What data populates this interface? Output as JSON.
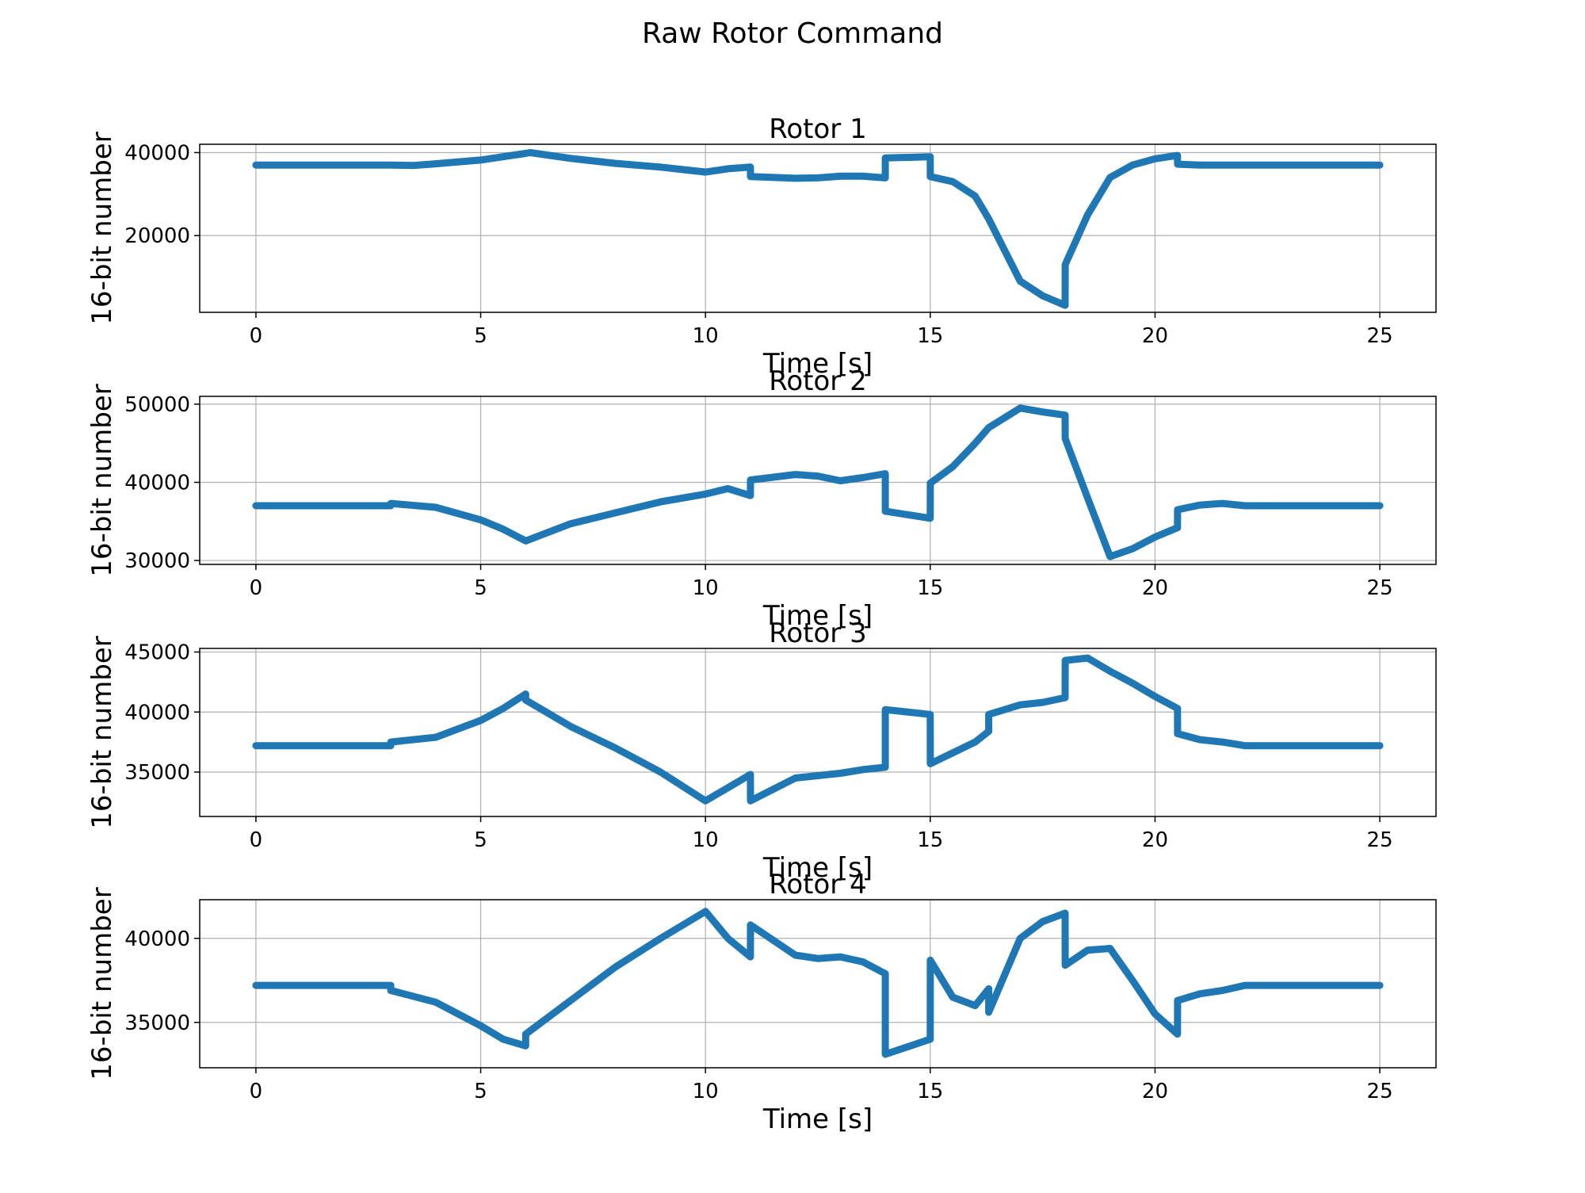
{
  "figure": {
    "title": "Raw Rotor Command"
  },
  "colors": {
    "series": "#1f77b4",
    "grid": "#b0b0b0",
    "axes": "#000000"
  },
  "chart_data": [
    {
      "type": "line",
      "title": "Rotor 1",
      "xlabel": "Time [s]",
      "ylabel": "16-bit number",
      "xlim": [
        -1.25,
        26.25
      ],
      "ylim": [
        1500,
        42000
      ],
      "xticks": [
        0,
        5,
        10,
        15,
        20,
        25
      ],
      "yticks": [
        20000,
        40000
      ],
      "grid": true,
      "series": [
        {
          "x": [
            0,
            1,
            2,
            3,
            3.5,
            4,
            5,
            5.5,
            6,
            6.1,
            7,
            8,
            9,
            10,
            10.5,
            11,
            11.001,
            12,
            12.5,
            13,
            13.5,
            14,
            14.001,
            15,
            15.001,
            15.5,
            16,
            16.3,
            17,
            17.5,
            18,
            18.001,
            18.5,
            19,
            19.5,
            20,
            20.5,
            20.501,
            21,
            21.5,
            22,
            23,
            24,
            25
          ],
          "y": [
            37000,
            37000,
            37000,
            37000,
            36900,
            37300,
            38200,
            39000,
            39800,
            40000,
            38600,
            37400,
            36500,
            35300,
            36100,
            36500,
            34200,
            33800,
            33900,
            34300,
            34300,
            33900,
            38700,
            39000,
            34200,
            33000,
            29500,
            24000,
            9000,
            5500,
            3200,
            13000,
            25000,
            34000,
            37000,
            38500,
            39300,
            37200,
            37000,
            37000,
            37000,
            37000,
            37000,
            37000
          ]
        }
      ]
    },
    {
      "type": "line",
      "title": "Rotor 2",
      "xlabel": "Time [s]",
      "ylabel": "16-bit number",
      "xlim": [
        -1.25,
        26.25
      ],
      "ylim": [
        29500,
        51000
      ],
      "xticks": [
        0,
        5,
        10,
        15,
        20,
        25
      ],
      "yticks": [
        30000,
        40000,
        50000
      ],
      "grid": true,
      "series": [
        {
          "x": [
            0,
            1,
            2,
            3,
            3.001,
            4,
            5,
            5.5,
            6,
            7,
            8,
            9,
            10,
            10.5,
            11,
            11.001,
            12,
            12.5,
            13,
            13.5,
            14,
            14.001,
            15,
            15.001,
            15.5,
            16,
            16.3,
            17,
            17.5,
            18,
            18.001,
            18.5,
            19,
            19.5,
            20,
            20.5,
            20.501,
            21,
            21.5,
            22,
            23,
            24,
            25
          ],
          "y": [
            37000,
            37000,
            37000,
            37000,
            37300,
            36800,
            35200,
            34000,
            32500,
            34700,
            36100,
            37500,
            38500,
            39200,
            38300,
            40300,
            41000,
            40800,
            40200,
            40600,
            41100,
            36300,
            35400,
            39900,
            42000,
            45000,
            47000,
            49500,
            49000,
            48600,
            45600,
            38000,
            30500,
            31500,
            33000,
            34200,
            36500,
            37100,
            37300,
            37000,
            37000,
            37000,
            37000
          ]
        }
      ]
    },
    {
      "type": "line",
      "title": "Rotor 3",
      "xlabel": "Time [s]",
      "ylabel": "16-bit number",
      "xlim": [
        -1.25,
        26.25
      ],
      "ylim": [
        31300,
        45300
      ],
      "xticks": [
        0,
        5,
        10,
        15,
        20,
        25
      ],
      "yticks": [
        35000,
        40000,
        45000
      ],
      "grid": true,
      "series": [
        {
          "x": [
            0,
            1,
            2,
            3,
            3.001,
            4,
            5,
            5.5,
            6,
            6.001,
            7,
            8,
            9,
            10,
            10.5,
            11,
            11.001,
            12,
            12.5,
            13,
            13.5,
            14,
            14.001,
            15,
            15.001,
            16,
            16.3,
            16.301,
            17,
            17.5,
            18,
            18.001,
            18.5,
            19,
            19.5,
            20,
            20.5,
            20.501,
            21,
            21.5,
            22,
            23,
            24,
            25
          ],
          "y": [
            37200,
            37200,
            37200,
            37200,
            37500,
            37900,
            39300,
            40300,
            41500,
            41000,
            38800,
            37000,
            35000,
            32600,
            33700,
            34800,
            32600,
            34500,
            34700,
            34900,
            35200,
            35400,
            40200,
            39800,
            35700,
            37500,
            38400,
            39800,
            40600,
            40800,
            41200,
            44300,
            44500,
            43400,
            42400,
            41300,
            40300,
            38200,
            37700,
            37500,
            37200,
            37200,
            37200,
            37200
          ]
        }
      ]
    },
    {
      "type": "line",
      "title": "Rotor 4",
      "xlabel": "Time [s]",
      "ylabel": "16-bit number",
      "xlim": [
        -1.25,
        26.25
      ],
      "ylim": [
        32300,
        42300
      ],
      "xticks": [
        0,
        5,
        10,
        15,
        20,
        25
      ],
      "yticks": [
        35000,
        40000
      ],
      "grid": true,
      "series": [
        {
          "x": [
            0,
            1,
            2,
            3,
            3.001,
            4,
            5,
            5.5,
            6,
            6.001,
            7,
            8,
            9,
            10,
            10.5,
            11,
            11.001,
            12,
            12.5,
            13,
            13.5,
            14,
            14.001,
            15,
            15.001,
            15.5,
            16,
            16.3,
            16.301,
            17,
            17.5,
            18,
            18.001,
            18.5,
            19,
            19.5,
            20,
            20.5,
            20.501,
            21,
            21.5,
            22,
            23,
            24,
            25
          ],
          "y": [
            37200,
            37200,
            37200,
            37200,
            36900,
            36200,
            34800,
            34000,
            33600,
            34300,
            36300,
            38300,
            40000,
            41600,
            40000,
            38900,
            40800,
            39000,
            38800,
            38900,
            38600,
            37900,
            33100,
            34000,
            38700,
            36500,
            36000,
            37000,
            35600,
            40000,
            41000,
            41500,
            38400,
            39300,
            39400,
            37500,
            35500,
            34300,
            36300,
            36700,
            36900,
            37200,
            37200,
            37200,
            37200
          ]
        }
      ]
    }
  ]
}
